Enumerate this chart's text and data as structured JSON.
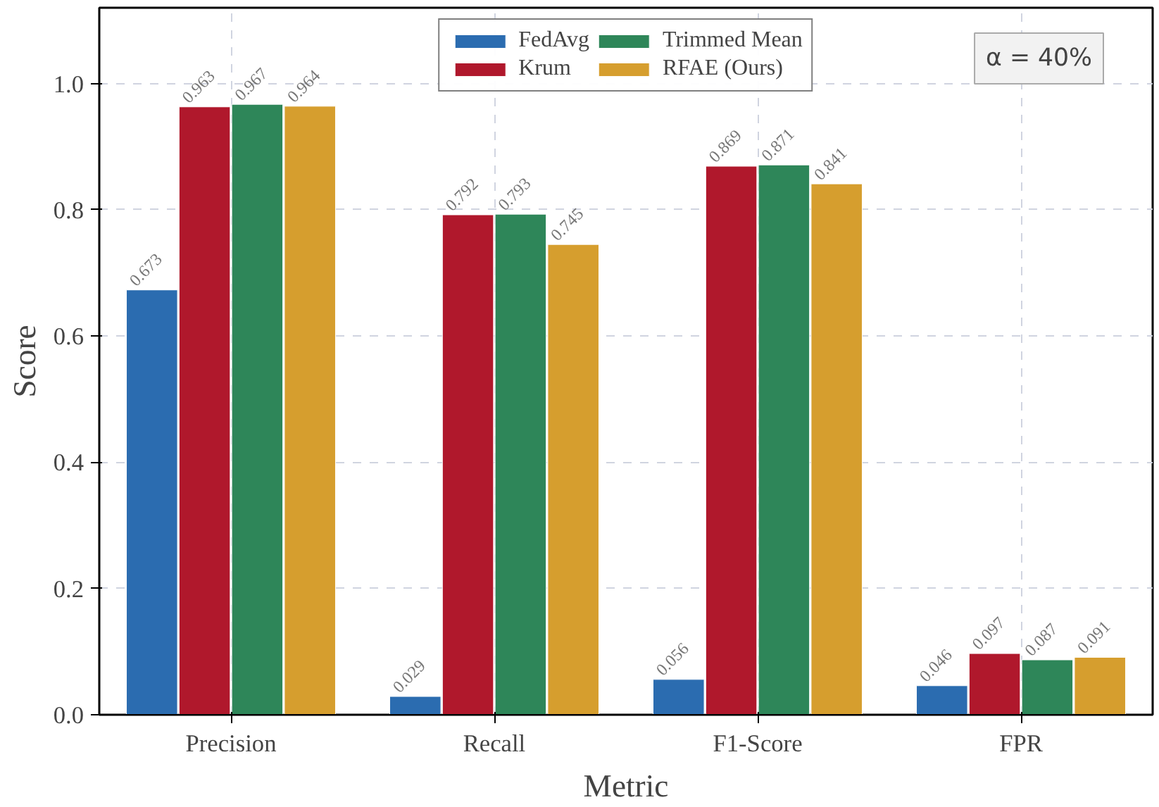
{
  "chart_data": {
    "type": "bar",
    "xlabel": "Metric",
    "ylabel": "Score",
    "categories": [
      "Precision",
      "Recall",
      "F1-Score",
      "FPR"
    ],
    "series": [
      {
        "name": "FedAvg",
        "color": "#2b6cb0",
        "values": [
          0.673,
          0.029,
          0.056,
          0.046
        ]
      },
      {
        "name": "Krum",
        "color": "#b0182c",
        "values": [
          0.963,
          0.792,
          0.869,
          0.097
        ]
      },
      {
        "name": "Trimmed Mean",
        "color": "#2e8659",
        "values": [
          0.967,
          0.793,
          0.871,
          0.087
        ]
      },
      {
        "name": "RFAE (Ours)",
        "color": "#d69e2e",
        "values": [
          0.964,
          0.745,
          0.841,
          0.091
        ]
      }
    ],
    "ylim": [
      0,
      1.12
    ],
    "yticks": [
      {
        "value": 0,
        "label": "0.0"
      },
      {
        "value": 0.2,
        "label": "0.2"
      },
      {
        "value": 0.4,
        "label": "0.4"
      },
      {
        "value": 0.6,
        "label": "0.6"
      },
      {
        "value": 0.8,
        "label": "0.8"
      },
      {
        "value": 1,
        "label": "1.0"
      }
    ],
    "data_labels": true,
    "grid": true,
    "legend": "top",
    "annotations": [
      "α = 40%"
    ]
  }
}
